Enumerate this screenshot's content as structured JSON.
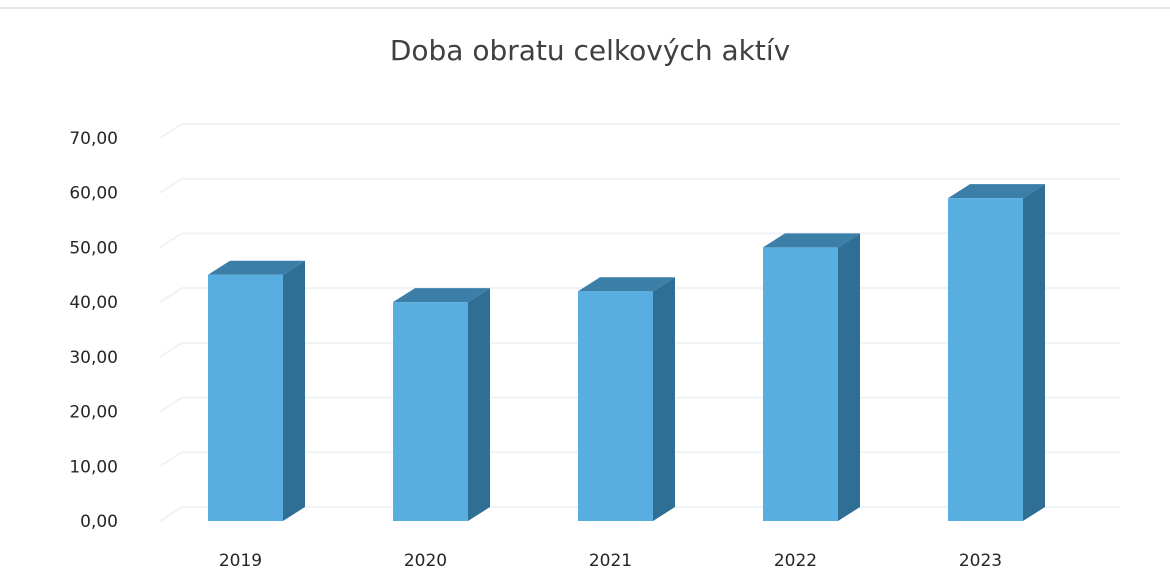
{
  "colors": {
    "bar_front": "#58ade1",
    "bar_top": "#3b7fa8",
    "bar_side": "#2f6f96",
    "gridline": "#eef3f8",
    "text": "#262626"
  },
  "chart_data": {
    "type": "bar",
    "title": "Doba obratu celkových aktív",
    "xlabel": "",
    "ylabel": "",
    "categories": [
      "2019",
      "2020",
      "2021",
      "2022",
      "2023"
    ],
    "values": [
      45,
      40,
      42,
      50,
      59
    ],
    "ylim": [
      0,
      70
    ],
    "yticks": [
      "0,00",
      "10,00",
      "20,00",
      "30,00",
      "40,00",
      "50,00",
      "60,00",
      "70,00"
    ],
    "grid": true,
    "legend": "none",
    "style": "3d-column"
  }
}
